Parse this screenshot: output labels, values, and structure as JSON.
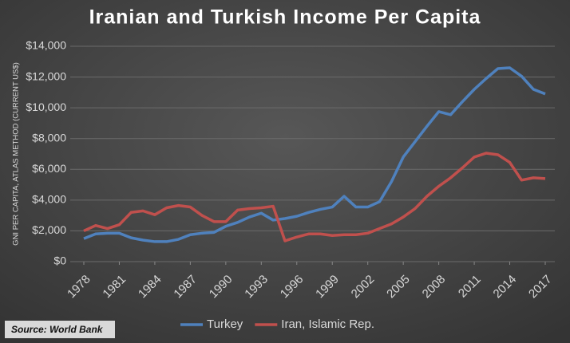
{
  "chart_data": {
    "type": "line",
    "title": "Iranian and Turkish Income Per Capita",
    "y_label": "GNI PER CAPITA, ATLAS METHOD (CURRENT US$)",
    "source": "Source: World Bank",
    "x": [
      1978,
      1979,
      1980,
      1981,
      1982,
      1983,
      1984,
      1985,
      1986,
      1987,
      1988,
      1989,
      1990,
      1991,
      1992,
      1993,
      1994,
      1995,
      1996,
      1997,
      1998,
      1999,
      2000,
      2001,
      2002,
      2003,
      2004,
      2005,
      2006,
      2007,
      2008,
      2009,
      2010,
      2011,
      2012,
      2013,
      2014,
      2015,
      2016,
      2017
    ],
    "series": [
      {
        "name": "Turkey",
        "color": "#4f81bd",
        "values": [
          1500,
          1800,
          1850,
          1850,
          1550,
          1400,
          1300,
          1300,
          1450,
          1750,
          1850,
          1900,
          2300,
          2550,
          2900,
          3150,
          2700,
          2800,
          2950,
          3200,
          3400,
          3550,
          4250,
          3550,
          3550,
          3900,
          5200,
          6800,
          7800,
          8800,
          9750,
          9550,
          10400,
          11200,
          11900,
          12550,
          12600,
          12050,
          11200,
          10900
        ]
      },
      {
        "name": "Iran, Islamic Rep.",
        "color": "#c0504d",
        "values": [
          2000,
          2350,
          2150,
          2400,
          3200,
          3300,
          3050,
          3500,
          3650,
          3550,
          3000,
          2600,
          2600,
          3350,
          3450,
          3500,
          3600,
          1350,
          1600,
          1800,
          1800,
          1700,
          1750,
          1750,
          1850,
          2150,
          2450,
          2900,
          3450,
          4250,
          4900,
          5450,
          6100,
          6800,
          7050,
          6950,
          6450,
          5300,
          5450,
          5400
        ]
      }
    ],
    "xlim": [
      1978,
      2017
    ],
    "xticks": [
      1978,
      1981,
      1984,
      1987,
      1990,
      1993,
      1996,
      1999,
      2002,
      2005,
      2008,
      2011,
      2014,
      2017
    ],
    "ylim": [
      0,
      14000
    ],
    "yticks": [
      {
        "value": 0,
        "label": "$0"
      },
      {
        "value": 2000,
        "label": "$2,000"
      },
      {
        "value": 4000,
        "label": "$4,000"
      },
      {
        "value": 6000,
        "label": "$6,000"
      },
      {
        "value": 8000,
        "label": "$8,000"
      },
      {
        "value": 10000,
        "label": "$10,000"
      },
      {
        "value": 12000,
        "label": "$12,000"
      },
      {
        "value": 14000,
        "label": "$14,000"
      }
    ],
    "grid": true,
    "legend": "bottom"
  }
}
